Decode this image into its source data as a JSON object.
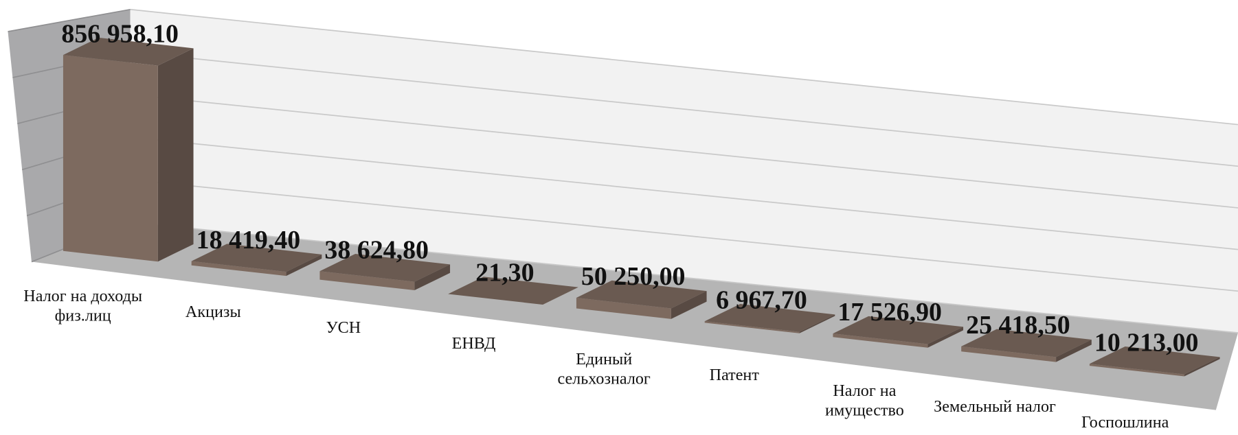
{
  "chart_data": {
    "type": "bar3d",
    "categories": [
      "Налог на доходы физ.лиц",
      "Акцизы",
      "УСН",
      "ЕНВД",
      "Единый сельхозналог",
      "Патент",
      "Налог на имущество",
      "Земельный налог",
      "Госпошлина"
    ],
    "values": [
      856958.1,
      18419.4,
      38624.8,
      21.3,
      50250.0,
      6967.7,
      17526.9,
      25418.5,
      10213.0
    ],
    "value_labels": [
      "856 958,10",
      "18 419,40",
      "38 624,80",
      "21,30",
      "50 250,00",
      "6 967,70",
      "17 526,90",
      "25 418,50",
      "10 213,00"
    ],
    "color": "#7d6a5f",
    "ylim": [
      0,
      1000000
    ],
    "yticks": [
      0,
      200000,
      400000,
      600000,
      800000,
      1000000
    ],
    "grid": true
  }
}
